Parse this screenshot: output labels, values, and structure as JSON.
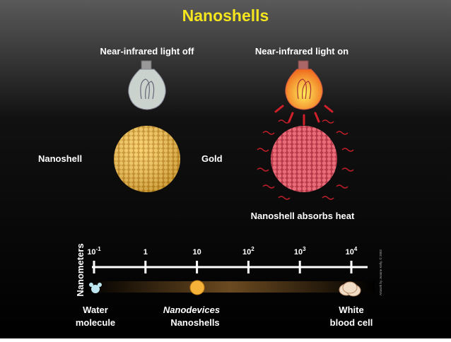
{
  "title": "Nanoshells",
  "panels": [
    {
      "label": "Near-infrared light off"
    },
    {
      "label": "Near-infrared light on",
      "caption": "Nanoshell absorbs heat"
    }
  ],
  "callouts": {
    "left": "Nanoshell",
    "right": "Gold"
  },
  "scale": {
    "axis_label": "Nanometers",
    "ticks": [
      {
        "base": "10",
        "exp": "-1"
      },
      {
        "base": "1"
      },
      {
        "base": "10"
      },
      {
        "base": "10",
        "exp": "2"
      },
      {
        "base": "10",
        "exp": "3"
      },
      {
        "base": "10",
        "exp": "4"
      }
    ],
    "items": [
      {
        "lines": [
          "Water",
          "molecule"
        ]
      },
      {
        "lines": [
          "Nanodevices",
          "Nanoshells"
        ]
      },
      {
        "lines": [
          "White",
          "blood cell"
        ]
      }
    ]
  },
  "credit": "Artwork by Jeanne Kelly. © 2002"
}
